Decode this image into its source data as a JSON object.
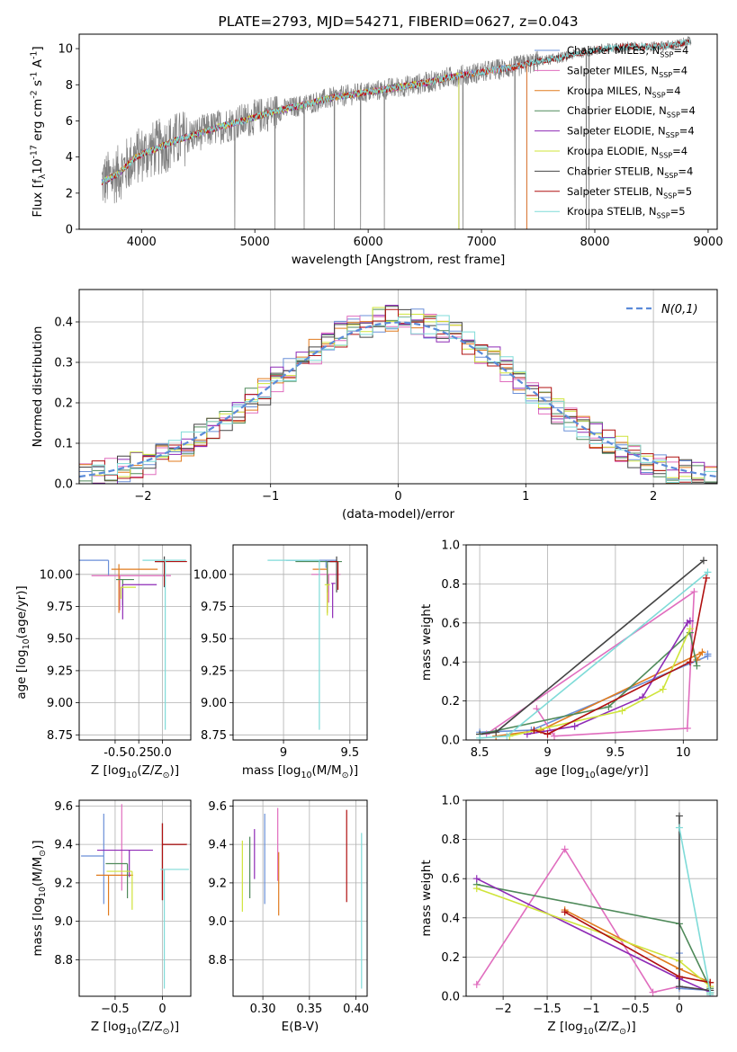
{
  "figure_title": "PLATE=2793, MJD=54271, FIBERID=0627, z=0.043",
  "series_names": [
    "Chabrier MILES, N$_{SSP}$=4",
    "Salpeter MILES, N$_{SSP}$=4",
    "Kroupa MILES, N$_{SSP}$=4",
    "Chabrier ELODIE, N$_{SSP}$=4",
    "Salpeter ELODIE, N$_{SSP}$=4",
    "Kroupa ELODIE, N$_{SSP}$=4",
    "Chabrier STELIB, N$_{SSP}$=4",
    "Salpeter STELIB, N$_{SSP}$=5",
    "Kroupa STELIB, N$_{SSP}$=5"
  ],
  "colors": {
    "series": [
      "#6a8fd8",
      "#e06dbe",
      "#e07b1e",
      "#4f8a5a",
      "#8e2ab6",
      "#cfe43a",
      "#444444",
      "#b01010",
      "#7fdbd8"
    ],
    "data": "#808080",
    "normal": "#5b8bd9",
    "grid": "#b0b0b0"
  },
  "chart_data": [
    {
      "id": "spectrum",
      "type": "line",
      "title": "PLATE=2793, MJD=54271, FIBERID=0627, z=0.043",
      "xlabel": "wavelength [Angstrom, rest frame]",
      "ylabel": "Flux [f$_\\lambda$10$^{-17}$ erg cm$^{-2}$ s$^{-1}$ A$^{-1}$]",
      "xlim": [
        3450,
        9080
      ],
      "ylim": [
        0,
        10.8
      ],
      "xticks": [
        4000,
        5000,
        6000,
        7000,
        8000,
        9000
      ],
      "yticks": [
        0,
        2,
        4,
        6,
        8,
        10
      ],
      "legend": "top-right",
      "grid": false,
      "model_continuum": [
        [
          3650,
          2.6
        ],
        [
          3800,
          3.1
        ],
        [
          3950,
          4.0
        ],
        [
          4100,
          4.4
        ],
        [
          4300,
          4.9
        ],
        [
          4500,
          5.3
        ],
        [
          4700,
          5.7
        ],
        [
          4900,
          6.0
        ],
        [
          5100,
          6.4
        ],
        [
          5300,
          6.7
        ],
        [
          5500,
          7.0
        ],
        [
          5700,
          7.3
        ],
        [
          5900,
          7.5
        ],
        [
          6100,
          7.7
        ],
        [
          6300,
          7.9
        ],
        [
          6500,
          8.1
        ],
        [
          6700,
          8.4
        ],
        [
          6900,
          8.6
        ],
        [
          7100,
          8.8
        ],
        [
          7300,
          9.0
        ],
        [
          7500,
          9.3
        ],
        [
          7700,
          9.5
        ],
        [
          7900,
          9.8
        ],
        [
          8100,
          10.0
        ],
        [
          8300,
          10.1
        ],
        [
          8500,
          10.1
        ],
        [
          8700,
          10.2
        ],
        [
          8850,
          10.4
        ]
      ],
      "model_coverage_end": {
        "Chabrier MILES, N$_{SSP}$=4": 7400,
        "Salpeter MILES, N$_{SSP}$=4": 7400,
        "Kroupa MILES, N$_{SSP}$=4": 7400,
        "Chabrier ELODIE, N$_{SSP}$=4": 6800,
        "Salpeter ELODIE, N$_{SSP}$=4": 6800,
        "Kroupa ELODIE, N$_{SSP}$=4": 6800,
        "Chabrier STELIB, N$_{SSP}$=4": 8850,
        "Salpeter STELIB, N$_{SSP}$=5": 8850,
        "Kroupa STELIB, N$_{SSP}$=5": 8850
      },
      "data_wavelength_range": [
        3650,
        8850
      ]
    },
    {
      "id": "residuals",
      "type": "histogram",
      "xlabel": "(data-model)/error",
      "ylabel": "Normed distribution",
      "xlim": [
        -2.5,
        2.5
      ],
      "ylim": [
        0,
        0.48
      ],
      "xticks": [
        -2,
        -1,
        0,
        1,
        2
      ],
      "yticks": [
        0.0,
        0.1,
        0.2,
        0.3,
        0.4
      ],
      "grid": true,
      "legend": "top-right",
      "reference": {
        "name": "$\\mathcal{N}(0,1)$",
        "mean": 0,
        "sigma": 1
      },
      "bin_width": 0.1,
      "envelope_sigma": 0.98
    },
    {
      "id": "age-vs-Z",
      "type": "errorbar",
      "xlabel": "Z [log$_{10}$(Z/Z$_\\odot$)]",
      "ylabel": "age  [log$_{10}$(age/yr)]",
      "xlim": [
        -0.88,
        0.3
      ],
      "ylim": [
        8.71,
        10.23
      ],
      "xticks": [
        -0.5,
        -0.25,
        0.0
      ],
      "xticklabels": [
        "-0.5",
        "-0.25",
        "0.0"
      ],
      "yticks": [
        8.75,
        9.0,
        9.25,
        9.5,
        9.75,
        10.0
      ],
      "grid": true,
      "points": [
        {
          "x": -0.57,
          "xerr": [
            0.38,
            0.0
          ],
          "y": 10.11,
          "yerr": [
            0.12,
            0.0
          ],
          "c": 0
        },
        {
          "x": -0.45,
          "xerr": [
            0.3,
            0.54
          ],
          "y": 9.99,
          "yerr": [
            0.27,
            0.0
          ],
          "c": 1
        },
        {
          "x": -0.46,
          "xerr": [
            0.08,
            0.41
          ],
          "y": 10.04,
          "yerr": [
            0.34,
            0.04
          ],
          "c": 2
        },
        {
          "x": -0.42,
          "xerr": [
            0.07,
            0.12
          ],
          "y": 9.96,
          "yerr": [
            0.2,
            0.0
          ],
          "c": 3
        },
        {
          "x": -0.42,
          "xerr": [
            0.0,
            0.36
          ],
          "y": 9.92,
          "yerr": [
            0.27,
            0.0
          ],
          "c": 4
        },
        {
          "x": -0.44,
          "xerr": [
            0.0,
            0.16
          ],
          "y": 9.9,
          "yerr": [
            0.09,
            0.0
          ],
          "c": 5
        },
        {
          "x": 0.02,
          "xerr": [
            0.1,
            0.0
          ],
          "y": 10.1,
          "yerr": [
            0.2,
            0.04
          ],
          "c": 6
        },
        {
          "x": 0.02,
          "xerr": [
            0.1,
            0.24
          ],
          "y": 10.1,
          "yerr": [
            0.19,
            0.0
          ],
          "c": 7
        },
        {
          "x": 0.03,
          "xerr": [
            0.24,
            0.22
          ],
          "y": 10.11,
          "yerr": [
            1.32,
            0.0
          ],
          "c": 8
        }
      ]
    },
    {
      "id": "age-vs-mass",
      "type": "errorbar",
      "xlabel": "mass [log$_{10}$(M/M$_\\odot$)]",
      "ylabel": "",
      "xlim": [
        8.62,
        9.63
      ],
      "ylim": [
        8.71,
        10.23
      ],
      "xticks": [
        9.0,
        9.5
      ],
      "yticks": [
        8.75,
        9.0,
        9.25,
        9.5,
        9.75,
        10.0
      ],
      "grid": true,
      "points": [
        {
          "x": 9.32,
          "xerr": [
            0.3,
            0.08
          ],
          "y": 10.11,
          "yerr": [
            0.06,
            0.0
          ],
          "c": 0
        },
        {
          "x": 9.34,
          "xerr": [
            0.13,
            0.09
          ],
          "y": 10.0,
          "yerr": [
            0.22,
            0.0
          ],
          "c": 1
        },
        {
          "x": 9.33,
          "xerr": [
            0.11,
            0.0
          ],
          "y": 10.04,
          "yerr": [
            0.34,
            0.04
          ],
          "c": 2
        },
        {
          "x": 9.33,
          "xerr": [
            0.24,
            0.11
          ],
          "y": 10.1,
          "yerr": [
            0.24,
            0.0
          ],
          "c": 3
        },
        {
          "x": 9.37,
          "xerr": [
            0.01,
            0.02
          ],
          "y": 9.93,
          "yerr": [
            0.27,
            0.0
          ],
          "c": 4
        },
        {
          "x": 9.33,
          "xerr": [
            0.02,
            0.02
          ],
          "y": 9.92,
          "yerr": [
            0.24,
            0.0
          ],
          "c": 5
        },
        {
          "x": 9.4,
          "xerr": [
            0.07,
            0.0
          ],
          "y": 10.1,
          "yerr": [
            0.24,
            0.04
          ],
          "c": 6
        },
        {
          "x": 9.41,
          "xerr": [
            0.06,
            0.0
          ],
          "y": 10.1,
          "yerr": [
            0.22,
            0.0
          ],
          "c": 7
        },
        {
          "x": 9.27,
          "xerr": [
            0.39,
            0.0
          ],
          "y": 10.11,
          "yerr": [
            1.32,
            0.0
          ],
          "c": 8
        }
      ]
    },
    {
      "id": "weight-vs-age",
      "type": "line",
      "xlabel": "age  [log$_{10}$(age/yr)]",
      "ylabel": "mass weight",
      "xlim": [
        8.4,
        10.25
      ],
      "ylim": [
        0,
        1.0
      ],
      "xticks": [
        8.5,
        9.0,
        9.5,
        10.0
      ],
      "yticks": [
        0.0,
        0.2,
        0.4,
        0.6,
        0.8,
        1.0
      ],
      "grid": true,
      "series": [
        {
          "c": 0,
          "x": [
            8.5,
            8.88,
            10.18,
            10.18
          ],
          "y": [
            0.04,
            0.05,
            0.43,
            0.44
          ]
        },
        {
          "c": 1,
          "x": [
            8.92,
            9.05,
            10.03,
            10.08,
            8.55
          ],
          "y": [
            0.16,
            0.02,
            0.06,
            0.76,
            0.03
          ]
        },
        {
          "c": 2,
          "x": [
            8.62,
            8.95,
            10.14,
            10.1
          ],
          "y": [
            0.02,
            0.05,
            0.45,
            0.41
          ]
        },
        {
          "c": 3,
          "x": [
            8.5,
            9.45,
            10.05,
            10.1
          ],
          "y": [
            0.03,
            0.17,
            0.55,
            0.38
          ]
        },
        {
          "c": 4,
          "x": [
            8.85,
            9.2,
            9.7,
            10.03,
            10.05
          ],
          "y": [
            0.03,
            0.07,
            0.22,
            0.6,
            0.61
          ]
        },
        {
          "c": 5,
          "x": [
            8.72,
            9.55,
            9.85,
            10.05
          ],
          "y": [
            0.02,
            0.15,
            0.26,
            0.57
          ]
        },
        {
          "c": 6,
          "x": [
            8.5,
            8.62,
            10.15
          ],
          "y": [
            0.03,
            0.04,
            0.92
          ]
        },
        {
          "c": 7,
          "x": [
            8.9,
            9.0,
            10.05,
            10.17
          ],
          "y": [
            0.05,
            0.03,
            0.4,
            0.83
          ]
        },
        {
          "c": 8,
          "x": [
            8.5,
            8.7,
            10.18
          ],
          "y": [
            0.01,
            0.02,
            0.86
          ]
        }
      ]
    },
    {
      "id": "mass-vs-Z",
      "type": "errorbar",
      "xlabel": "Z [log$_{10}$(Z/Z$_\\odot$)]",
      "ylabel": "mass [log$_{10}$(M/M$_\\odot$)]",
      "xlim": [
        -0.88,
        0.3
      ],
      "ylim": [
        8.61,
        9.63
      ],
      "xticks": [
        -0.5,
        0.0
      ],
      "yticks": [
        8.8,
        9.0,
        9.2,
        9.4,
        9.6
      ],
      "grid": true,
      "points": [
        {
          "x": -0.62,
          "xerr": [
            0.24,
            0.0
          ],
          "y": 9.34,
          "yerr": [
            0.25,
            0.22
          ],
          "c": 0
        },
        {
          "x": -0.43,
          "xerr": [
            0.0,
            0.0
          ],
          "y": 9.4,
          "yerr": [
            0.24,
            0.21
          ],
          "c": 1
        },
        {
          "x": -0.57,
          "xerr": [
            0.13,
            0.26
          ],
          "y": 9.24,
          "yerr": [
            0.21,
            0.0
          ],
          "c": 2
        },
        {
          "x": -0.37,
          "xerr": [
            0.23,
            0.0
          ],
          "y": 9.3,
          "yerr": [
            0.18,
            0.0
          ],
          "c": 3
        },
        {
          "x": -0.35,
          "xerr": [
            0.34,
            0.25
          ],
          "y": 9.37,
          "yerr": [
            0.14,
            0.0
          ],
          "c": 4
        },
        {
          "x": -0.32,
          "xerr": [
            0.27,
            0.0
          ],
          "y": 9.26,
          "yerr": [
            0.2,
            0.0
          ],
          "c": 5
        },
        {
          "x": 0.0,
          "xerr": [
            0.0,
            0.25
          ],
          "y": 9.4,
          "yerr": [
            0.29,
            0.11
          ],
          "c": 6
        },
        {
          "x": 0.0,
          "xerr": [
            0.0,
            0.26
          ],
          "y": 9.4,
          "yerr": [
            0.29,
            0.11
          ],
          "c": 7
        },
        {
          "x": 0.02,
          "xerr": [
            0.04,
            0.26
          ],
          "y": 9.27,
          "yerr": [
            0.62,
            0.0
          ],
          "c": 8
        }
      ]
    },
    {
      "id": "mass-vs-EBV",
      "type": "errorbar",
      "xlabel": "E(B-V)",
      "ylabel": "",
      "xlim": [
        0.268,
        0.412
      ],
      "ylim": [
        8.61,
        9.63
      ],
      "xticks": [
        0.3,
        0.35,
        0.4
      ],
      "xticklabels": [
        "0.30",
        "0.35",
        "0.40"
      ],
      "yticks": [
        8.8,
        9.0,
        9.2,
        9.4,
        9.6
      ],
      "grid": true,
      "points": [
        {
          "x": 0.302,
          "y": 9.34,
          "yerr": [
            0.25,
            0.22
          ],
          "c": 0
        },
        {
          "x": 0.316,
          "y": 9.4,
          "yerr": [
            0.19,
            0.19
          ],
          "c": 1
        },
        {
          "x": 0.317,
          "y": 9.24,
          "yerr": [
            0.21,
            0.12
          ],
          "c": 2
        },
        {
          "x": 0.286,
          "y": 9.3,
          "yerr": [
            0.18,
            0.14
          ],
          "c": 3
        },
        {
          "x": 0.291,
          "y": 9.37,
          "yerr": [
            0.15,
            0.11
          ],
          "c": 4
        },
        {
          "x": 0.278,
          "y": 9.25,
          "yerr": [
            0.2,
            0.17
          ],
          "c": 5
        },
        {
          "x": 0.302,
          "y": 9.4,
          "yerr": [
            0.0,
            0.0
          ],
          "c": 6
        },
        {
          "x": 0.39,
          "y": 9.4,
          "yerr": [
            0.3,
            0.18
          ],
          "c": 7
        },
        {
          "x": 0.406,
          "y": 9.27,
          "yerr": [
            0.62,
            0.19
          ],
          "c": 8
        }
      ]
    },
    {
      "id": "weight-vs-Z",
      "type": "line",
      "xlabel": "Z [log$_{10}$(Z/Z$_\\odot$)]",
      "ylabel": "mass weight",
      "xlim": [
        -2.42,
        0.43
      ],
      "ylim": [
        0,
        1.0
      ],
      "xticks": [
        -2.0,
        -1.5,
        -1.0,
        -0.5,
        0.0
      ],
      "yticks": [
        0.0,
        0.2,
        0.4,
        0.6,
        0.8,
        1.0
      ],
      "grid": true,
      "series": [
        {
          "c": 0,
          "x": [
            0.0,
            0.0,
            0.35,
            0.35
          ],
          "y": [
            0.22,
            0.04,
            0.03,
            0.02
          ]
        },
        {
          "c": 1,
          "x": [
            -2.3,
            -1.3,
            -0.3,
            0.0,
            0.35
          ],
          "y": [
            0.06,
            0.75,
            0.02,
            0.05,
            0.03
          ]
        },
        {
          "c": 2,
          "x": [
            -1.3,
            0.0,
            0.35,
            0.35
          ],
          "y": [
            0.44,
            0.14,
            0.07,
            0.02
          ]
        },
        {
          "c": 3,
          "x": [
            -2.3,
            0.0,
            0.35,
            0.35
          ],
          "y": [
            0.57,
            0.37,
            0.04,
            0.01
          ]
        },
        {
          "c": 4,
          "x": [
            -2.3,
            0.0,
            0.35,
            0.35
          ],
          "y": [
            0.6,
            0.09,
            0.02,
            0.0
          ]
        },
        {
          "c": 5,
          "x": [
            -2.3,
            0.0,
            0.35,
            0.35
          ],
          "y": [
            0.55,
            0.18,
            0.05,
            0.02
          ]
        },
        {
          "c": 6,
          "x": [
            0.0,
            0.0,
            0.35
          ],
          "y": [
            0.92,
            0.05,
            0.03
          ]
        },
        {
          "c": 7,
          "x": [
            -1.3,
            0.0,
            0.35
          ],
          "y": [
            0.43,
            0.1,
            0.07
          ]
        },
        {
          "c": 8,
          "x": [
            0.0,
            0.35,
            0.35
          ],
          "y": [
            0.86,
            0.02,
            0.01
          ]
        }
      ]
    }
  ]
}
